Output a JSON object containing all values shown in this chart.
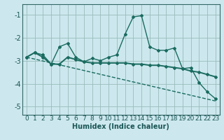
{
  "xlabel": "Humidex (Indice chaleur)",
  "bg_color": "#cce8ee",
  "grid_color": "#99bbbb",
  "line_color": "#1a6b60",
  "spine_color": "#336666",
  "tick_color": "#1a5555",
  "xlim": [
    -0.5,
    23.5
  ],
  "ylim": [
    -5.35,
    -0.55
  ],
  "yticks": [
    -5,
    -4,
    -3,
    -2,
    -1
  ],
  "xticks": [
    0,
    1,
    2,
    3,
    4,
    5,
    6,
    7,
    8,
    9,
    10,
    11,
    12,
    13,
    14,
    15,
    16,
    17,
    18,
    19,
    20,
    21,
    22,
    23
  ],
  "xtick_labels": [
    "0",
    "1",
    "2",
    "3",
    "4",
    "5",
    "6",
    "7",
    "8",
    "9",
    "10",
    "11",
    "12",
    "13",
    "14",
    "15",
    "16",
    "17",
    "18",
    "19",
    "20",
    "21",
    "22",
    "23"
  ],
  "line1_x": [
    0,
    1,
    2,
    3,
    4,
    5,
    6,
    7,
    8,
    9,
    10,
    11,
    12,
    13,
    14,
    15,
    16,
    17,
    18,
    19,
    20,
    21,
    22,
    23
  ],
  "line1_y": [
    -2.85,
    -2.65,
    -2.75,
    -3.15,
    -2.4,
    -2.25,
    -2.85,
    -3.05,
    -2.9,
    -3.0,
    -2.85,
    -2.75,
    -1.85,
    -1.1,
    -1.05,
    -2.4,
    -2.55,
    -2.55,
    -2.45,
    -3.35,
    -3.3,
    -3.95,
    -4.35,
    -4.65
  ],
  "line2_x": [
    0,
    1,
    2,
    3,
    4,
    5,
    6,
    7,
    8,
    9,
    10,
    11,
    12,
    13,
    14,
    15,
    16,
    17,
    18,
    19,
    20,
    21,
    22,
    23
  ],
  "line2_y": [
    -2.85,
    -2.65,
    -2.85,
    -3.15,
    -3.15,
    -2.85,
    -2.95,
    -3.05,
    -3.1,
    -3.1,
    -3.1,
    -3.1,
    -3.1,
    -3.15,
    -3.15,
    -3.2,
    -3.2,
    -3.25,
    -3.3,
    -3.35,
    -3.45,
    -3.5,
    -3.6,
    -3.7
  ],
  "line3_x": [
    0,
    23
  ],
  "line3_y": [
    -2.85,
    -4.75
  ],
  "tick_fontsize": 6.5,
  "xlabel_fontsize": 7.0
}
